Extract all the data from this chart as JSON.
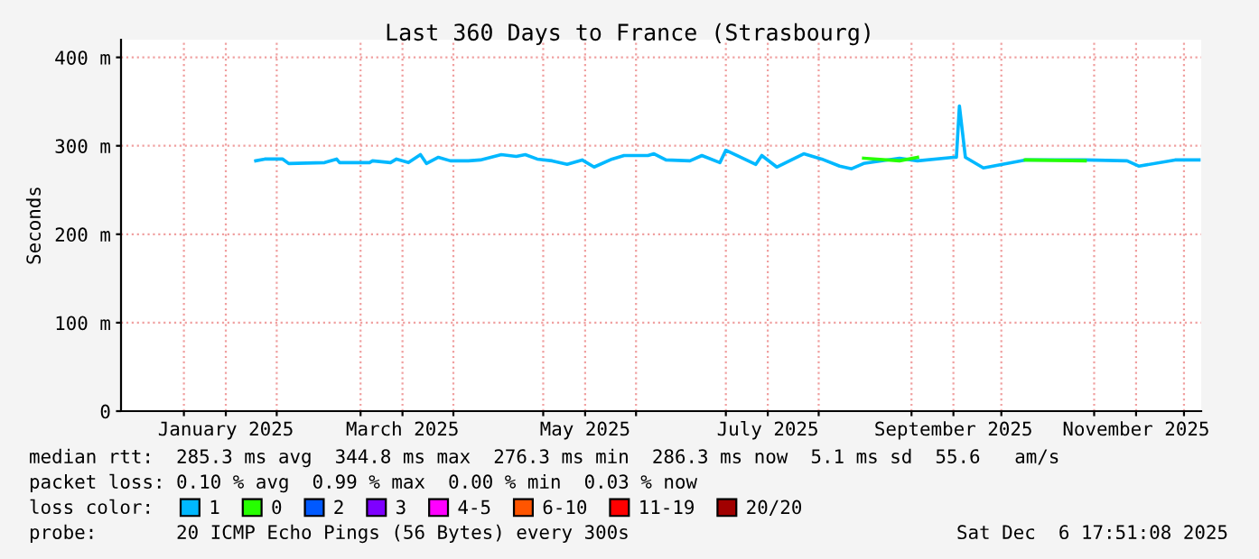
{
  "chart_data": {
    "type": "line",
    "title": "Last 360 Days to France (Strasbourg)",
    "ylabel": "Seconds",
    "xlim": [
      "2024-12-11",
      "2025-12-06T18:00"
    ],
    "ylim": [
      0,
      420
    ],
    "yticks": [
      0,
      {
        "value": 100,
        "label": "100 m"
      },
      {
        "value": 200,
        "label": "200 m"
      },
      {
        "value": 300,
        "label": "300 m"
      },
      {
        "value": 400,
        "label": "400 m"
      }
    ],
    "xticks": [
      {
        "value": "2025-01-01",
        "label": null
      },
      {
        "value": "2025-01-15",
        "label": "January 2025"
      },
      {
        "value": "2025-02-01",
        "label": null
      },
      {
        "value": "2025-03-01",
        "label": null
      },
      {
        "value": "2025-03-15",
        "label": "March 2025"
      },
      {
        "value": "2025-04-01",
        "label": null
      },
      {
        "value": "2025-05-01",
        "label": null
      },
      {
        "value": "2025-05-15",
        "label": "May 2025"
      },
      {
        "value": "2025-06-01",
        "label": null
      },
      {
        "value": "2025-07-01",
        "label": null
      },
      {
        "value": "2025-07-15",
        "label": "July 2025"
      },
      {
        "value": "2025-08-01",
        "label": null
      },
      {
        "value": "2025-09-01",
        "label": null
      },
      {
        "value": "2025-09-15",
        "label": "September 2025"
      },
      {
        "value": "2025-10-01",
        "label": null
      },
      {
        "value": "2025-11-01",
        "label": null
      },
      {
        "value": "2025-11-15",
        "label": "November 2025"
      },
      {
        "value": "2025-12-01",
        "label": null
      }
    ],
    "grid": true,
    "legend": "bottom",
    "legend_title": "loss color:",
    "marker": "none",
    "line_style": "solid",
    "series": [
      {
        "name": "1",
        "color": "#00b8ff",
        "x": [
          "2025-01-25",
          "2025-01-28",
          "2025-02-03",
          "2025-02-05",
          "2025-02-17",
          "2025-02-21",
          "2025-02-22",
          "2025-03-04",
          "2025-03-05",
          "2025-03-11",
          "2025-03-13",
          "2025-03-17",
          "2025-03-21",
          "2025-03-23",
          "2025-03-27",
          "2025-03-31",
          "2025-04-06",
          "2025-04-10",
          "2025-04-17",
          "2025-04-22",
          "2025-04-25",
          "2025-04-29",
          "2025-05-04",
          "2025-05-09",
          "2025-05-14",
          "2025-05-18",
          "2025-05-24",
          "2025-05-28",
          "2025-06-05",
          "2025-06-07",
          "2025-06-11",
          "2025-06-19",
          "2025-06-23",
          "2025-06-29",
          "2025-07-01",
          "2025-07-11",
          "2025-07-13",
          "2025-07-18",
          "2025-07-27",
          "2025-08-02",
          "2025-08-08",
          "2025-08-12",
          "2025-08-16",
          "2025-08-28",
          "2025-09-03",
          "2025-09-15",
          "2025-09-16",
          "2025-09-17",
          "2025-09-19",
          "2025-09-25",
          "2025-10-09",
          "2025-10-29",
          "2025-11-12",
          "2025-11-16",
          "2025-11-28",
          "2025-12-06"
        ],
        "values": [
          283,
          285,
          285,
          280,
          281,
          285,
          281,
          281,
          283,
          281,
          285,
          281,
          290,
          280,
          287,
          283,
          283,
          284,
          290,
          288,
          290,
          285,
          283,
          279,
          284,
          276,
          285,
          289,
          289,
          291,
          284,
          283,
          289,
          281,
          295,
          279,
          289,
          276,
          291,
          285,
          277,
          274,
          280,
          286,
          283,
          287,
          287,
          345,
          287,
          275,
          284,
          284,
          283,
          277,
          284,
          284
        ]
      },
      {
        "name": "0",
        "color": "#26ff00",
        "x": [
          "2025-08-16",
          "2025-08-28",
          "2025-09-03",
          "2025-09-05",
          "2025-10-09",
          "2025-10-29"
        ],
        "values": [
          286,
          283,
          287,
          null,
          284,
          283
        ]
      },
      {
        "name": "2",
        "color": "#0059ff"
      },
      {
        "name": "3",
        "color": "#7e00ff"
      },
      {
        "name": "4-5",
        "color": "#ff00ff"
      },
      {
        "name": "6-10",
        "color": "#ff5500"
      },
      {
        "name": "11-19",
        "color": "#ff0000"
      },
      {
        "name": "20/20",
        "color": "#a10000"
      }
    ],
    "annotations": [
      "median rtt:  285.3 ms avg  344.8 ms max  276.3 ms min  286.3 ms now  5.1 ms sd  55.6   am/s",
      "packet loss: 0.10 % avg  0.99 % max  0.00 % min  0.03 % now",
      "probe:       20 ICMP Echo Pings (56 Bytes) every 300s",
      "Sat Dec  6 17:51:08 2025"
    ]
  }
}
